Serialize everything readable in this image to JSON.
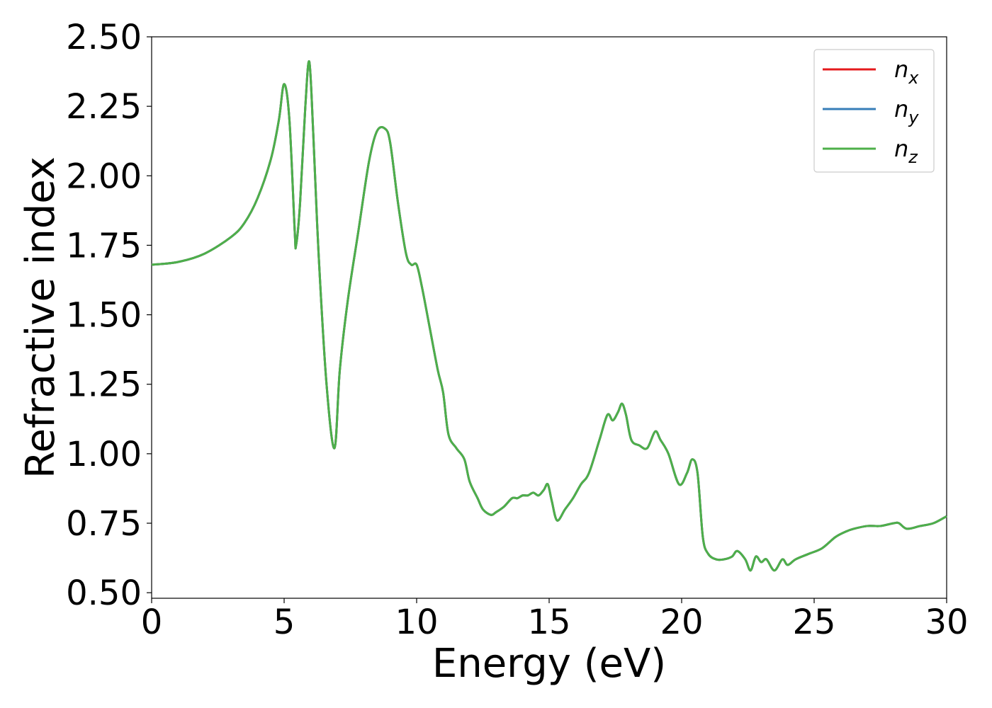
{
  "chart_data": {
    "type": "line",
    "xlabel": "Energy (eV)",
    "ylabel": "Refractive index",
    "xlim": [
      0,
      30
    ],
    "ylim": [
      0.48,
      2.5
    ],
    "xticks": [
      0,
      5,
      10,
      15,
      20,
      25,
      30
    ],
    "xtick_labels": [
      "0",
      "5",
      "10",
      "15",
      "20",
      "25",
      "30"
    ],
    "yticks": [
      0.5,
      0.75,
      1.0,
      1.25,
      1.5,
      1.75,
      2.0,
      2.25,
      2.5
    ],
    "ytick_labels": [
      "0.50",
      "0.75",
      "1.00",
      "1.25",
      "1.50",
      "1.75",
      "2.00",
      "2.25",
      "2.50"
    ],
    "grid": false,
    "legend_position": "top-right",
    "series": [
      {
        "name": "n_x",
        "sub": "x",
        "color": "#e41a1c"
      },
      {
        "name": "n_y",
        "sub": "y",
        "color": "#377eb8"
      },
      {
        "name": "n_z",
        "sub": "z",
        "color": "#4daf4a"
      }
    ],
    "x": [
      0,
      1,
      2,
      3,
      3.5,
      4,
      4.5,
      4.8,
      5.0,
      5.2,
      5.4,
      5.45,
      5.6,
      5.8,
      5.95,
      6.1,
      6.3,
      6.6,
      6.9,
      7.1,
      7.4,
      7.8,
      8.2,
      8.5,
      8.8,
      9.0,
      9.3,
      9.6,
      9.8,
      10.0,
      10.2,
      10.5,
      10.8,
      11.0,
      11.2,
      11.5,
      11.8,
      12.0,
      12.3,
      12.5,
      12.8,
      13.0,
      13.3,
      13.6,
      13.8,
      14.0,
      14.2,
      14.4,
      14.6,
      14.8,
      14.95,
      15.1,
      15.3,
      15.6,
      15.9,
      16.2,
      16.5,
      16.9,
      17.2,
      17.4,
      17.6,
      17.75,
      17.9,
      18.1,
      18.4,
      18.7,
      19.0,
      19.2,
      19.5,
      19.9,
      20.2,
      20.4,
      20.6,
      20.8,
      21.0,
      21.3,
      21.6,
      21.9,
      22.1,
      22.4,
      22.6,
      22.8,
      23.0,
      23.2,
      23.5,
      23.8,
      24.0,
      24.3,
      24.8,
      25.3,
      25.8,
      26.2,
      26.5,
      27.0,
      27.5,
      28.0,
      28.2,
      28.5,
      29.0,
      29.5,
      30.0
    ],
    "values": [
      1.68,
      1.69,
      1.72,
      1.78,
      1.83,
      1.92,
      2.06,
      2.2,
      2.33,
      2.2,
      1.8,
      1.75,
      1.9,
      2.25,
      2.41,
      2.15,
      1.72,
      1.25,
      1.02,
      1.3,
      1.55,
      1.8,
      2.05,
      2.16,
      2.17,
      2.12,
      1.9,
      1.72,
      1.68,
      1.68,
      1.6,
      1.45,
      1.3,
      1.22,
      1.07,
      1.02,
      0.98,
      0.9,
      0.84,
      0.8,
      0.78,
      0.79,
      0.81,
      0.84,
      0.84,
      0.85,
      0.85,
      0.86,
      0.85,
      0.87,
      0.89,
      0.83,
      0.76,
      0.8,
      0.84,
      0.89,
      0.93,
      1.05,
      1.14,
      1.12,
      1.15,
      1.18,
      1.14,
      1.05,
      1.03,
      1.02,
      1.08,
      1.05,
      1.0,
      0.89,
      0.93,
      0.98,
      0.93,
      0.7,
      0.64,
      0.62,
      0.62,
      0.63,
      0.65,
      0.62,
      0.58,
      0.63,
      0.61,
      0.62,
      0.58,
      0.62,
      0.6,
      0.62,
      0.64,
      0.66,
      0.7,
      0.72,
      0.73,
      0.74,
      0.74,
      0.75,
      0.75,
      0.73,
      0.74,
      0.75,
      0.775
    ]
  }
}
